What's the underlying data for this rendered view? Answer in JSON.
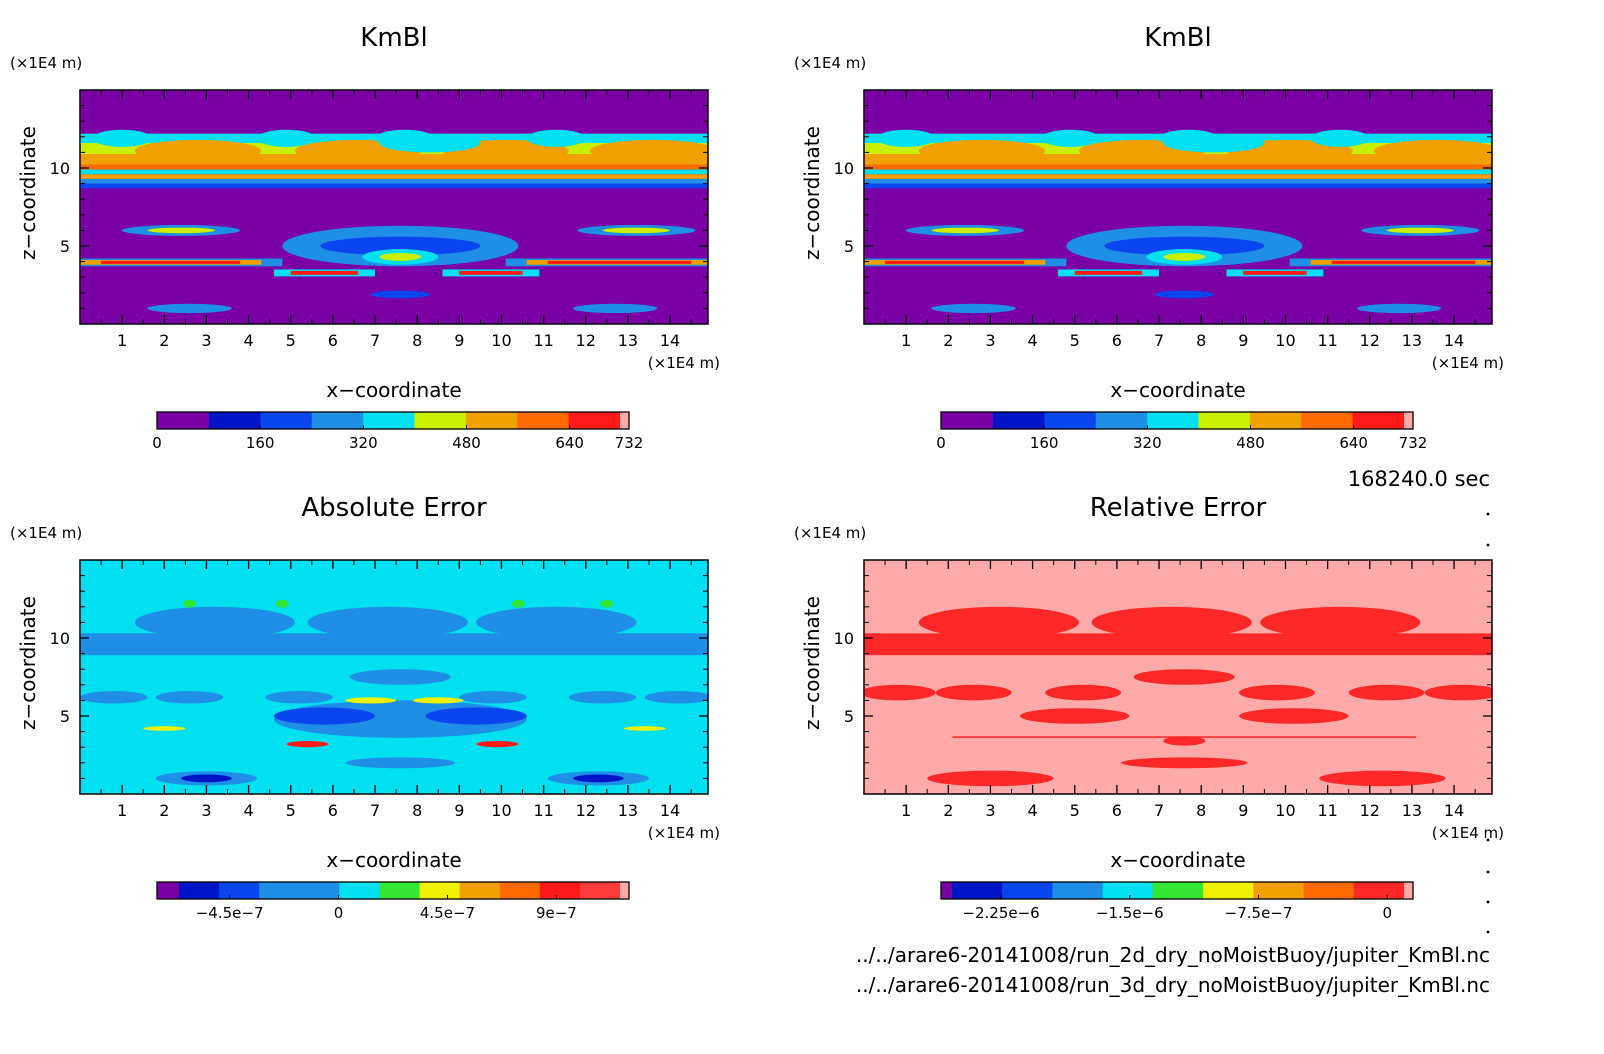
{
  "time_label": "168240.0 sec",
  "file_paths": [
    "../../arare6-20141008/run_2d_dry_noMoistBuoy/jupiter_KmBl.nc",
    "../../arare6-20141008/run_3d_dry_noMoistBuoy/jupiter_KmBl.nc"
  ],
  "colors": {
    "km": [
      "#7a00a6",
      "#0014c8",
      "#0a46f0",
      "#1e8ee6",
      "#00e0f0",
      "#c8f000",
      "#f0a000",
      "#ff6a00",
      "#ff1a1a",
      "#ffaaaa"
    ],
    "abs": [
      "#7a00a6",
      "#0014c8",
      "#0a46f0",
      "#1e8ee6",
      "#1e8ee6",
      "#00e0f0",
      "#32e632",
      "#f0f000",
      "#f0a000",
      "#ff6a00",
      "#ff1a1a",
      "#ff3c3c",
      "#ffaaaa"
    ],
    "rel": [
      "#7a00a6",
      "#0014c8",
      "#0a46f0",
      "#1e8ee6",
      "#00e0f0",
      "#32e632",
      "#f0f000",
      "#f0a000",
      "#ff6a00",
      "#ff2828",
      "#ffaaaa"
    ]
  },
  "chart_data": [
    {
      "type": "heatmap",
      "title": "KmBl",
      "xlabel": "x−coordinate",
      "ylabel": "z−coordinate",
      "x_unit": "(×1E4 m)",
      "y_unit": "(×1E4 m)",
      "xlim": [
        0,
        14.9
      ],
      "ylim": [
        0,
        15
      ],
      "x_ticks": [
        "1",
        "2",
        "3",
        "4",
        "5",
        "6",
        "7",
        "8",
        "9",
        "10",
        "11",
        "12",
        "13",
        "14"
      ],
      "y_ticks": [
        "5",
        "10"
      ],
      "colorbar_ticks": [
        "0",
        "160",
        "320",
        "480",
        "640",
        "732"
      ],
      "colorbar_range": [
        0,
        732
      ],
      "background": "#7a00a6",
      "palette": "km"
    },
    {
      "type": "heatmap",
      "title": "KmBl",
      "xlabel": "x−coordinate",
      "ylabel": "z−coordinate",
      "x_unit": "(×1E4 m)",
      "y_unit": "(×1E4 m)",
      "xlim": [
        0,
        14.9
      ],
      "ylim": [
        0,
        15
      ],
      "x_ticks": [
        "1",
        "2",
        "3",
        "4",
        "5",
        "6",
        "7",
        "8",
        "9",
        "10",
        "11",
        "12",
        "13",
        "14"
      ],
      "y_ticks": [
        "5",
        "10"
      ],
      "colorbar_ticks": [
        "0",
        "160",
        "320",
        "480",
        "640",
        "732"
      ],
      "colorbar_range": [
        0,
        732
      ],
      "background": "#7a00a6",
      "palette": "km"
    },
    {
      "type": "heatmap",
      "title": "Absolute Error",
      "xlabel": "x−coordinate",
      "ylabel": "z−coordinate",
      "x_unit": "(×1E4 m)",
      "y_unit": "(×1E4 m)",
      "xlim": [
        0,
        14.9
      ],
      "ylim": [
        0,
        15
      ],
      "x_ticks": [
        "1",
        "2",
        "3",
        "4",
        "5",
        "6",
        "7",
        "8",
        "9",
        "10",
        "11",
        "12",
        "13",
        "14"
      ],
      "y_ticks": [
        "5",
        "10"
      ],
      "colorbar_ticks": [
        "−4.5e−7",
        "0",
        "4.5e−7",
        "9e−7"
      ],
      "colorbar_range": [
        -7.5e-07,
        1.2e-06
      ],
      "background": "#00e0f0",
      "palette": "abs"
    },
    {
      "type": "heatmap",
      "title": "Relative Error",
      "xlabel": "x−coordinate",
      "ylabel": "z−coordinate",
      "x_unit": "(×1E4 m)",
      "y_unit": "(×1E4 m)",
      "xlim": [
        0,
        14.9
      ],
      "ylim": [
        0,
        15
      ],
      "x_ticks": [
        "1",
        "2",
        "3",
        "4",
        "5",
        "6",
        "7",
        "8",
        "9",
        "10",
        "11",
        "12",
        "13",
        "14"
      ],
      "y_ticks": [
        "5",
        "10"
      ],
      "colorbar_ticks": [
        "−2.25e−6",
        "−1.5e−6",
        "−7.5e−7",
        "0"
      ],
      "colorbar_range": [
        -2.6e-06,
        1.5e-07
      ],
      "background": "#ffaaaa",
      "palette": "rel"
    }
  ]
}
